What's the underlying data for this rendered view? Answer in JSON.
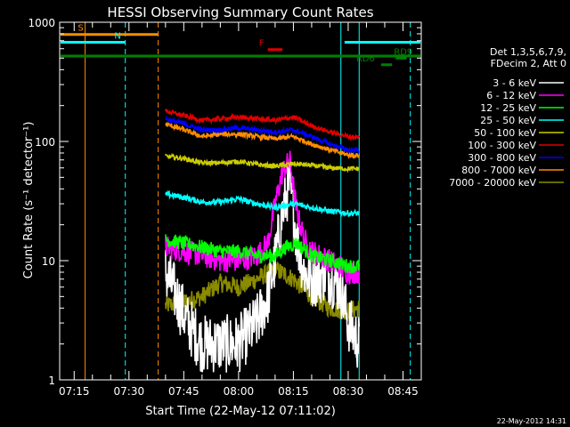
{
  "chart_data": {
    "type": "line",
    "title": "HESSI Observing Summary Count Rates",
    "xlabel": "Start Time (22-May-12 07:11:02)",
    "ylabel": "Count Rate (s⁻¹ detector⁻¹)",
    "y_scale": "log",
    "ylim": [
      1,
      1000
    ],
    "yticks": [
      "1",
      "10",
      "100",
      "1000"
    ],
    "xlim": [
      "07:11:02",
      "08:50:00"
    ],
    "xticks": [
      "07:15",
      "07:30",
      "07:45",
      "08:00",
      "08:15",
      "08:30",
      "08:45"
    ],
    "footer_date": "22-May-2012 14:31",
    "legend": {
      "header": [
        "Det 1,3,5,6,7,9,",
        "FDecim 2, Att 0"
      ],
      "entries": [
        {
          "label": "3 - 6 keV",
          "color": "#ffffff"
        },
        {
          "label": "6 - 12 keV",
          "color": "#ff00ff"
        },
        {
          "label": "12 - 25 keV",
          "color": "#00ff00"
        },
        {
          "label": "25 - 50 keV",
          "color": "#00ffff"
        },
        {
          "label": "50 - 100 keV",
          "color": "#cccc00"
        },
        {
          "label": "100 - 300 keV",
          "color": "#e00000"
        },
        {
          "label": "300 - 800 keV",
          "color": "#0000ff"
        },
        {
          "label": "800 - 7000 keV",
          "color": "#ff8c00"
        },
        {
          "label": "7000 - 20000 keV",
          "color": "#8b8b00"
        }
      ]
    },
    "flags": [
      {
        "label": "S",
        "color": "#ff8c00",
        "start": "07:11",
        "end": "07:38",
        "level": 790
      },
      {
        "label": "N",
        "color": "#00ffff",
        "start": "07:11",
        "end": "07:29",
        "level": 680
      },
      {
        "label": "N",
        "color": "#00ffff",
        "start": "08:29",
        "end": "08:50",
        "level": 680
      },
      {
        "label": "F",
        "color": "#e00000",
        "start": "08:08",
        "end": "08:12",
        "level": 590
      },
      {
        "label": "",
        "color": "#008000",
        "start": "07:11",
        "end": "08:50",
        "level": 520
      },
      {
        "label": "RD9",
        "color": "#008000",
        "start": "08:43",
        "end": "08:46",
        "level": 500
      },
      {
        "label": "RD6",
        "color": "#008000",
        "start": "08:39",
        "end": "08:42",
        "level": 440
      }
    ],
    "vlines": [
      {
        "time": "07:18",
        "color": "#ff8c00",
        "dashed": false
      },
      {
        "time": "07:29",
        "color": "#00ffff",
        "dashed": true
      },
      {
        "time": "07:38",
        "color": "#ff8c00",
        "dashed": true
      },
      {
        "time": "08:28",
        "color": "#00ffff",
        "dashed": false
      },
      {
        "time": "08:33",
        "color": "#00ffff",
        "dashed": false
      },
      {
        "time": "08:47",
        "color": "#00ffff",
        "dashed": true
      }
    ],
    "data_window": {
      "start": "07:40",
      "end": "08:33"
    },
    "series": [
      {
        "name": "100 - 300 keV",
        "color": "#e00000",
        "noise": 0.02,
        "x": [
          "07:40",
          "07:45",
          "07:50",
          "07:55",
          "08:00",
          "08:05",
          "08:10",
          "08:15",
          "08:20",
          "08:25",
          "08:30",
          "08:33"
        ],
        "y": [
          180,
          165,
          150,
          155,
          160,
          155,
          150,
          160,
          135,
          120,
          110,
          108
        ]
      },
      {
        "name": "300 - 800 keV",
        "color": "#0000ff",
        "noise": 0.02,
        "x": [
          "07:40",
          "07:45",
          "07:50",
          "07:55",
          "08:00",
          "08:05",
          "08:10",
          "08:15",
          "08:20",
          "08:25",
          "08:30",
          "08:33"
        ],
        "y": [
          155,
          140,
          125,
          125,
          130,
          125,
          120,
          125,
          110,
          95,
          85,
          84
        ]
      },
      {
        "name": "800 - 7000 keV",
        "color": "#ff8c00",
        "noise": 0.02,
        "x": [
          "07:40",
          "07:45",
          "07:50",
          "07:55",
          "08:00",
          "08:05",
          "08:10",
          "08:15",
          "08:20",
          "08:25",
          "08:30",
          "08:33"
        ],
        "y": [
          140,
          125,
          110,
          115,
          115,
          110,
          105,
          110,
          95,
          85,
          77,
          76
        ]
      },
      {
        "name": "50 - 100 keV",
        "color": "#cccc00",
        "noise": 0.02,
        "x": [
          "07:40",
          "07:45",
          "07:50",
          "07:55",
          "08:00",
          "08:05",
          "08:10",
          "08:15",
          "08:20",
          "08:25",
          "08:30",
          "08:33"
        ],
        "y": [
          75,
          72,
          66,
          66,
          68,
          64,
          62,
          65,
          63,
          60,
          59,
          59
        ]
      },
      {
        "name": "25 - 50 keV",
        "color": "#00ffff",
        "noise": 0.025,
        "x": [
          "07:40",
          "07:45",
          "07:50",
          "07:55",
          "08:00",
          "08:05",
          "08:10",
          "08:15",
          "08:20",
          "08:25",
          "08:30",
          "08:33"
        ],
        "y": [
          36,
          34,
          31,
          31,
          33,
          30,
          28,
          30,
          28,
          26,
          25,
          25
        ]
      },
      {
        "name": "12 - 25 keV",
        "color": "#00ff00",
        "noise": 0.06,
        "x": [
          "07:40",
          "07:45",
          "07:50",
          "07:55",
          "08:00",
          "08:05",
          "08:10",
          "08:13",
          "08:16",
          "08:20",
          "08:25",
          "08:30",
          "08:33"
        ],
        "y": [
          15,
          14,
          13,
          12,
          12,
          11,
          11,
          13,
          14,
          11,
          10,
          9,
          9
        ]
      },
      {
        "name": "6 - 12 keV",
        "color": "#ff00ff",
        "noise": 0.1,
        "x": [
          "07:40",
          "07:45",
          "07:50",
          "07:55",
          "08:00",
          "08:05",
          "08:08",
          "08:10",
          "08:12",
          "08:14",
          "08:16",
          "08:18",
          "08:20",
          "08:25",
          "08:30",
          "08:33"
        ],
        "y": [
          13,
          12,
          11,
          10,
          10,
          11,
          14,
          30,
          55,
          70,
          25,
          15,
          12,
          10,
          8,
          8
        ]
      },
      {
        "name": "3 - 6 keV",
        "color": "#ffffff",
        "noise": 0.25,
        "x": [
          "07:40",
          "07:43",
          "07:46",
          "07:50",
          "07:55",
          "08:00",
          "08:05",
          "08:08",
          "08:10",
          "08:12",
          "08:14",
          "08:16",
          "08:18",
          "08:20",
          "08:24",
          "08:28",
          "08:30",
          "08:33"
        ],
        "y": [
          8,
          5,
          3,
          2,
          2,
          2,
          3,
          5,
          10,
          25,
          45,
          15,
          8,
          7,
          8,
          6,
          3,
          2
        ]
      },
      {
        "name": "7000 - 20000 keV",
        "color": "#8b8b00",
        "noise": 0.08,
        "x": [
          "07:40",
          "07:45",
          "07:50",
          "07:55",
          "08:00",
          "08:05",
          "08:10",
          "08:15",
          "08:20",
          "08:25",
          "08:30",
          "08:33"
        ],
        "y": [
          4.2,
          4.5,
          5,
          6.5,
          6,
          7,
          8.5,
          7,
          5,
          4,
          3.8,
          4
        ]
      }
    ]
  }
}
